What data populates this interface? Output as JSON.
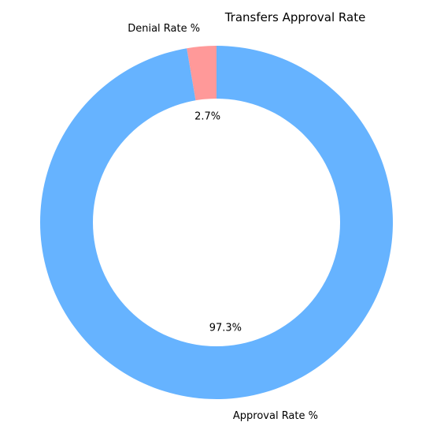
{
  "chart_data": {
    "type": "pie",
    "style": "donut",
    "title": "Transfers Approval Rate",
    "start_angle_deg": 90,
    "direction": "counterclockwise",
    "slices": [
      {
        "label": "Denial Rate %",
        "value": 2.7,
        "pct_label": "2.7%",
        "color": "#ff9999"
      },
      {
        "label": "Approval Rate %",
        "value": 97.3,
        "pct_label": "97.3%",
        "color": "#66b3ff"
      }
    ]
  }
}
